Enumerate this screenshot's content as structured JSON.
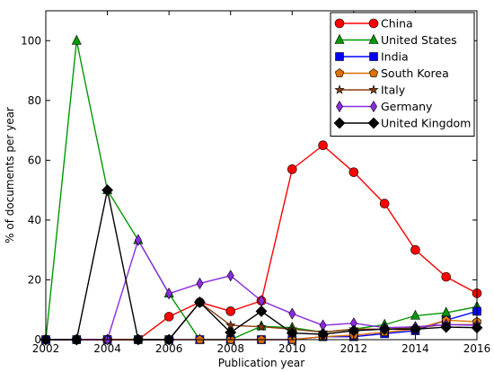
{
  "chart_data": {
    "type": "line",
    "xlabel": "Publication year",
    "ylabel": "% of documents per year",
    "xlim": [
      2002,
      2016
    ],
    "ylim": [
      0,
      110
    ],
    "xticks": [
      2002,
      2004,
      2006,
      2008,
      2010,
      2012,
      2014,
      2016
    ],
    "yticks": [
      0,
      20,
      40,
      60,
      80,
      100
    ],
    "grid": false,
    "legend_position": "top-right",
    "x": [
      2002,
      2003,
      2004,
      2005,
      2006,
      2007,
      2008,
      2009,
      2010,
      2011,
      2012,
      2013,
      2014,
      2015,
      2016
    ],
    "series": [
      {
        "name": "China",
        "color": "#ff0000",
        "marker": "circle",
        "values": [
          0,
          0,
          0,
          0,
          7.7,
          12.5,
          9.5,
          13,
          57,
          65,
          56,
          45.5,
          30,
          21,
          15.5
        ]
      },
      {
        "name": "United States",
        "color": "#009900",
        "marker": "triangle",
        "values": [
          0,
          100,
          50,
          33.3,
          15.4,
          0,
          0,
          4.5,
          4,
          2.5,
          3.5,
          5,
          8,
          9,
          11
        ]
      },
      {
        "name": "India",
        "color": "#0000ff",
        "marker": "square",
        "values": [
          0,
          0,
          0,
          0,
          0,
          0,
          0,
          0,
          0,
          1,
          1,
          2,
          3,
          6.5,
          9.5
        ]
      },
      {
        "name": "South Korea",
        "color": "#e07000",
        "marker": "pentagon",
        "values": [
          0,
          0,
          0,
          0,
          0,
          0,
          0,
          0,
          0,
          1,
          1.5,
          2.5,
          3.5,
          6.5,
          6
        ]
      },
      {
        "name": "Italy",
        "color": "#8b3a0f",
        "marker": "star",
        "values": [
          0,
          0,
          0,
          0,
          0,
          12.5,
          4.8,
          4.3,
          3.5,
          2.5,
          3.5,
          3.5,
          4,
          5,
          5
        ]
      },
      {
        "name": "Germany",
        "color": "#8a2be2",
        "marker": "thin_diamond",
        "values": [
          0,
          0,
          0,
          33.3,
          15.4,
          18.8,
          21.4,
          13,
          8.7,
          4.8,
          5.5,
          4,
          4.3,
          5,
          4.8
        ]
      },
      {
        "name": "United Kingdom",
        "color": "#000000",
        "marker": "diamond",
        "values": [
          0,
          0,
          50,
          0,
          0,
          12.5,
          2.4,
          9.5,
          2.2,
          1.8,
          3,
          3.5,
          3.5,
          4.2,
          4
        ]
      }
    ]
  }
}
